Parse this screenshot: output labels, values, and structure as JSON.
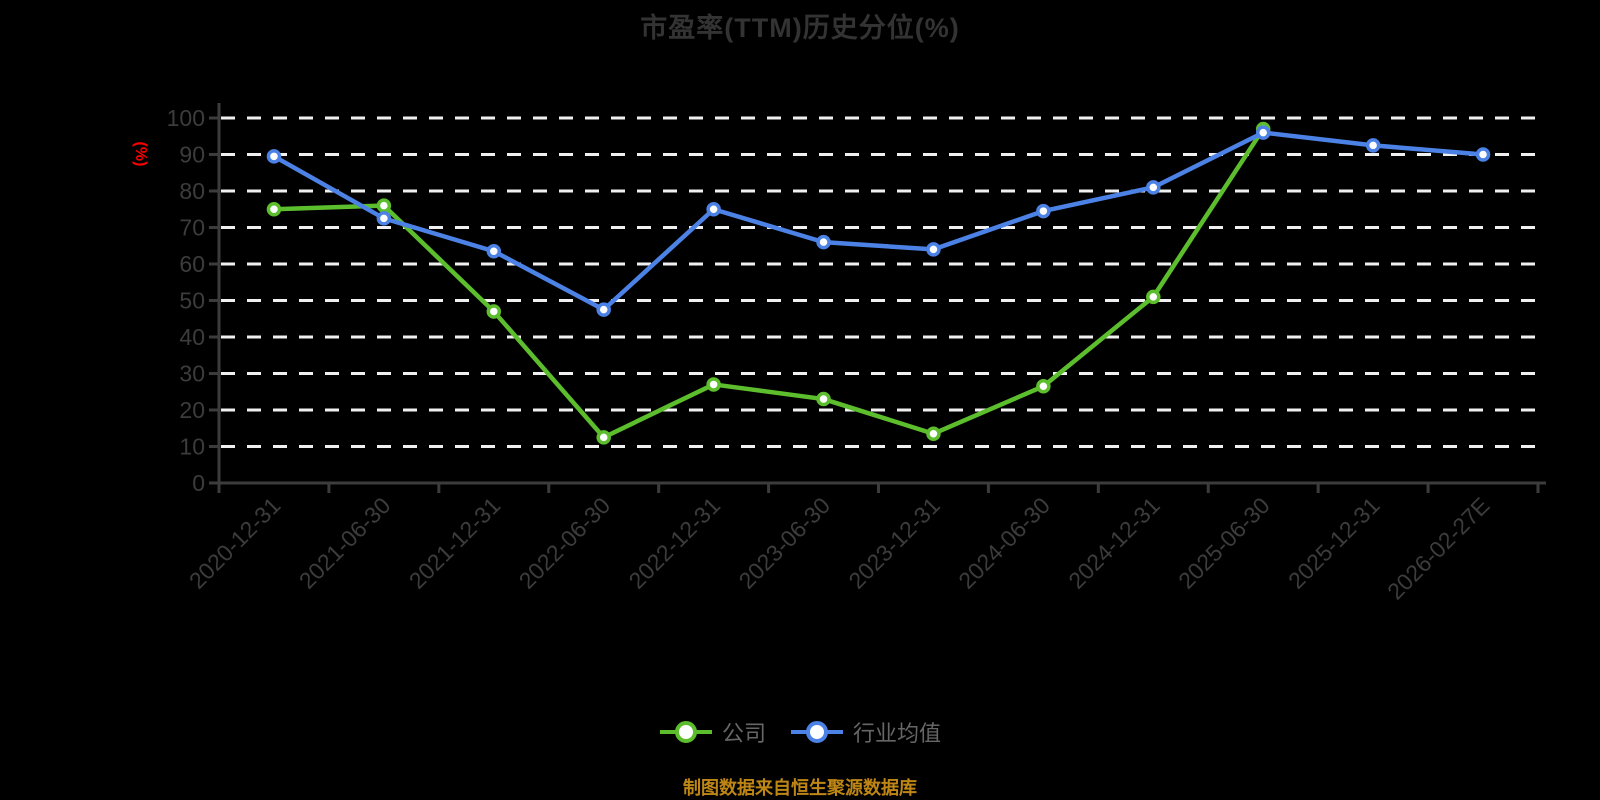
{
  "chart_data": {
    "type": "line",
    "title": "市盈率(TTM)历史分位(%)",
    "ylabel": "(%)",
    "xlabel": "",
    "ylim": [
      0,
      100
    ],
    "ytick_step": 10,
    "y_tick_labels": [
      "0",
      "10",
      "20",
      "30",
      "40",
      "50",
      "60",
      "70",
      "80",
      "90",
      "100"
    ],
    "grid": "horizontal-dashed",
    "legend_position": "bottom",
    "categories": [
      "2020-12-31",
      "2021-06-30",
      "2021-12-31",
      "2022-06-30",
      "2022-12-31",
      "2023-06-30",
      "2023-12-31",
      "2024-06-30",
      "2024-12-31",
      "2025-06-30",
      "2025-12-31",
      "2026-02-27E"
    ],
    "series": [
      {
        "name": "公司",
        "color": "#5CBE2D",
        "values": [
          75,
          76,
          47,
          12.5,
          27,
          23,
          13.5,
          26.5,
          51,
          97,
          null,
          null
        ]
      },
      {
        "name": "行业均值",
        "color": "#4C82E6",
        "values": [
          89.5,
          72.5,
          63.5,
          47.5,
          75,
          66,
          64,
          74.5,
          81,
          96,
          92.5,
          90
        ]
      }
    ]
  },
  "footer": {
    "source_note": "制图数据来自恒生聚源数据库"
  },
  "style": {
    "background": "#000000",
    "title_color": "#333333",
    "axis_color": "#3C3C3C",
    "grid_color": "#F0F0F0",
    "tick_label_color": "#3C3C3C",
    "y_axis_name_color": "#FF0000",
    "legend_text_color": "#666666",
    "footer_color": "#BE8614",
    "marker_fill": "#FFFFFF"
  }
}
